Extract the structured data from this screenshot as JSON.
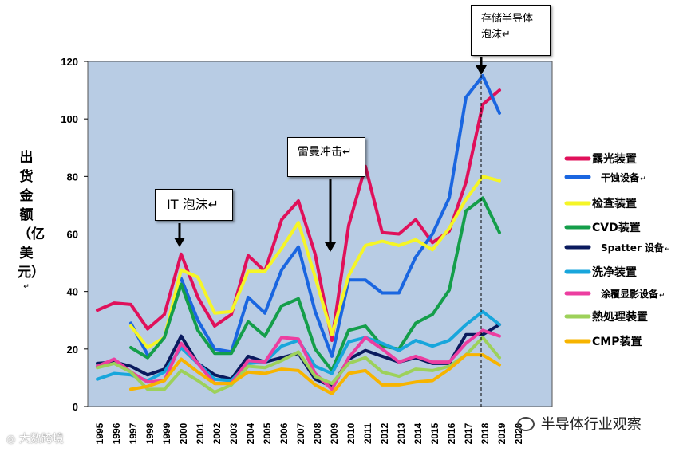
{
  "chart_data": {
    "type": "line",
    "title": "",
    "xlabel": "",
    "ylabel": "出货金额（亿美元）",
    "ylim": [
      0,
      120
    ],
    "yticks": [
      0,
      20,
      40,
      60,
      80,
      100,
      120
    ],
    "categories": [
      "1995",
      "1996",
      "1997",
      "1998",
      "1999",
      "2000",
      "2001",
      "2002",
      "2003",
      "2004",
      "2005",
      "2006",
      "2007",
      "2008",
      "2009",
      "2010",
      "2011",
      "2012",
      "2013",
      "2014",
      "2015",
      "2016",
      "2017",
      "2018",
      "2019",
      "2020"
    ],
    "series": [
      {
        "name": "露光装置",
        "color": "#e0105a",
        "values": [
          33.5,
          36,
          35.5,
          27,
          32,
          53,
          38,
          28,
          32,
          52.5,
          47,
          65,
          71.5,
          53,
          23,
          63,
          83.5,
          60.5,
          60,
          65,
          57,
          61,
          78,
          105,
          110,
          null
        ]
      },
      {
        "name": "干蚀设备",
        "color": "#1a66e0",
        "values": [
          null,
          null,
          29,
          18,
          null,
          44.5,
          30,
          20,
          19,
          38,
          32.5,
          47.5,
          55.5,
          33,
          17.5,
          44,
          44,
          39.5,
          39.5,
          52,
          60,
          72.5,
          107.5,
          115,
          102,
          null
        ]
      },
      {
        "name": "检查装置",
        "color": "#f5f526",
        "values": [
          null,
          null,
          28,
          20.5,
          24,
          47.5,
          45,
          32.5,
          33,
          47,
          47,
          55,
          64,
          45,
          25,
          45.5,
          56,
          57.5,
          56,
          58,
          54.5,
          62,
          72,
          80,
          78.5,
          null
        ]
      },
      {
        "name": "CVD装置",
        "color": "#149e4a",
        "values": [
          null,
          null,
          20.5,
          17,
          24,
          42.5,
          26.5,
          18.5,
          18.5,
          29.5,
          24.5,
          35,
          37.5,
          20,
          12.5,
          26.5,
          28,
          21,
          20,
          29,
          32,
          40.5,
          68,
          72.5,
          60.5,
          null
        ]
      },
      {
        "name": "Spatter 设备",
        "color": "#0a1a5e",
        "values": [
          15,
          15.5,
          14,
          11,
          13,
          24.5,
          15,
          11,
          9.5,
          17.5,
          15.5,
          17,
          18.5,
          9.5,
          7,
          16.5,
          19.5,
          17.5,
          15.5,
          17,
          15,
          15,
          25,
          25,
          28.5,
          null
        ]
      },
      {
        "name": "洗净装置",
        "color": "#18a6dc",
        "values": [
          9.5,
          11.5,
          11,
          9,
          12,
          20.5,
          15,
          9.5,
          9,
          15,
          15.5,
          21,
          23,
          14,
          11.5,
          22.5,
          24,
          22,
          19.5,
          23,
          21,
          23,
          28.5,
          33,
          28.5,
          null
        ]
      },
      {
        "name": "涂覆显影设备",
        "color": "#ec3ea0",
        "values": [
          14,
          16.5,
          12,
          8.5,
          9,
          22,
          15,
          8,
          8,
          16,
          15.5,
          24,
          23.5,
          11.5,
          6,
          17,
          24,
          20,
          15.5,
          17.5,
          15.5,
          15.5,
          22,
          26.5,
          24.5,
          null
        ]
      },
      {
        "name": "熱処理装置",
        "color": "#9dd15a",
        "values": [
          13.5,
          15,
          12,
          6,
          6,
          12.5,
          9,
          5,
          7.5,
          14,
          13.5,
          16,
          19,
          10.5,
          8,
          15,
          17,
          12,
          10.5,
          13,
          12.5,
          14,
          18,
          24,
          17,
          null
        ]
      },
      {
        "name": "CMP装置",
        "color": "#f7b400",
        "values": [
          null,
          null,
          6,
          7,
          9,
          16.5,
          12,
          8,
          8,
          12,
          11.5,
          13,
          12.5,
          7.5,
          4.5,
          11.5,
          12.5,
          7.5,
          7.5,
          8.5,
          9,
          13,
          18,
          18,
          14.5,
          null
        ]
      }
    ],
    "annotations": [
      {
        "label": "IT 泡沫↵",
        "year": "2000"
      },
      {
        "label": "雷曼冲击↵",
        "year": "2009"
      },
      {
        "label": "存储半导体泡沫↵",
        "year": "2018"
      }
    ],
    "legend_position": "right",
    "grid": false
  },
  "annotations_text": {
    "it_bubble": "IT 泡沫↵",
    "lehman": "雷曼冲击↵",
    "memory_line1": "存储半导体",
    "memory_line2": "泡沫↵"
  },
  "ylabel_text": "出货金额（亿美元）",
  "ylabel_suffix": "↵",
  "watermarks": {
    "left": "大数跨境",
    "right": "半导体行业观察"
  },
  "colors": {
    "plot_bg": "#b8cce4",
    "page_bg": "#ffffff"
  }
}
